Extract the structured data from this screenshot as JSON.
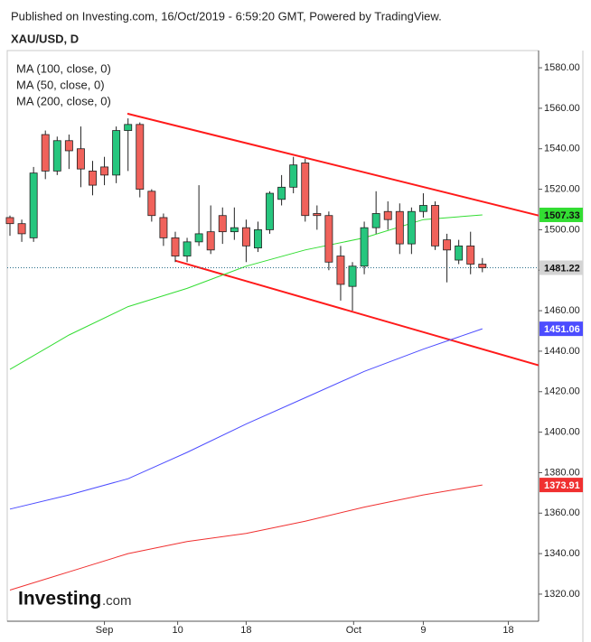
{
  "header": {
    "published": "Published on Investing.com, 16/Oct/2019 - 6:59:20 GMT, Powered by TradingView.",
    "logo": "Investing",
    "logo_suffix": ".com"
  },
  "chart_data": {
    "type": "candlestick",
    "title": "XAU/USD, D",
    "x": [
      0,
      1,
      2,
      3,
      4,
      5,
      6,
      7,
      8,
      9,
      10,
      11,
      12,
      13,
      14,
      15,
      16,
      17,
      18,
      19,
      20,
      21,
      22,
      23,
      24,
      25,
      26,
      27,
      28,
      29,
      30,
      31,
      32,
      33,
      34,
      35,
      36,
      37,
      38,
      39,
      40
    ],
    "open": [
      1506,
      1503,
      1496,
      1547,
      1529,
      1544,
      1540,
      1529,
      1531,
      1527,
      1549,
      1552,
      1519,
      1506,
      1496,
      1487,
      1494,
      1499,
      1507,
      1499,
      1501,
      1491,
      1500,
      1515,
      1521,
      1533,
      1508,
      1507,
      1487,
      1472,
      1482,
      1501,
      1509,
      1509,
      1493,
      1509,
      1512,
      1495,
      1485,
      1492,
      1483
    ],
    "high": [
      1507,
      1505,
      1531,
      1549,
      1546,
      1547,
      1551,
      1534,
      1536,
      1551,
      1555,
      1553,
      1520,
      1508,
      1499,
      1496,
      1522,
      1512,
      1511,
      1511,
      1505,
      1504,
      1519,
      1527,
      1536,
      1535,
      1512,
      1509,
      1492,
      1484,
      1504,
      1519,
      1514,
      1513,
      1511,
      1518,
      1514,
      1498,
      1495,
      1499,
      1486
    ],
    "low": [
      1497,
      1494,
      1494,
      1525,
      1527,
      1530,
      1521,
      1517,
      1522,
      1523,
      1529,
      1516,
      1504,
      1492,
      1484,
      1484,
      1492,
      1488,
      1493,
      1495,
      1484,
      1489,
      1498,
      1512,
      1518,
      1504,
      1500,
      1480,
      1465,
      1460,
      1478,
      1498,
      1500,
      1488,
      1488,
      1506,
      1490,
      1474,
      1483,
      1478,
      1479
    ],
    "close": [
      1503,
      1498,
      1528,
      1529,
      1544,
      1539,
      1530,
      1522,
      1527,
      1549,
      1552,
      1520,
      1507,
      1496,
      1487,
      1494,
      1498,
      1490,
      1499,
      1501,
      1492,
      1500,
      1518,
      1521,
      1532,
      1507,
      1507,
      1484,
      1473,
      1482,
      1501,
      1508,
      1505,
      1493,
      1509,
      1512,
      1492,
      1490,
      1492,
      1483,
      1481.22
    ],
    "up_color": "#26c67e",
    "down_color": "#f0625b",
    "last_price_color": "#d4d4d4",
    "overlays": [
      {
        "name": "MA (100, close, 0)",
        "color": "#4c4cff",
        "x": [
          0,
          5,
          10,
          15,
          20,
          25,
          30,
          35,
          40
        ],
        "values": [
          1362,
          1369,
          1377,
          1390,
          1404,
          1417,
          1430,
          1441,
          1451.06
        ]
      },
      {
        "name": "MA (50, close, 0)",
        "color": "#33dd33",
        "x": [
          0,
          5,
          10,
          15,
          20,
          25,
          30,
          35,
          40
        ],
        "values": [
          1431,
          1448,
          1462,
          1471,
          1482,
          1490,
          1496,
          1505,
          1507.33
        ]
      },
      {
        "name": "MA (200, close, 0)",
        "color": "#f03030",
        "x": [
          0,
          5,
          10,
          15,
          20,
          25,
          30,
          35,
          40
        ],
        "values": [
          1322,
          1331,
          1340,
          1346,
          1350,
          1356,
          1363,
          1369,
          1373.91
        ]
      }
    ],
    "trendlines": [
      {
        "color": "#ff1a1a",
        "x": [
          9.95,
          44.76
        ],
        "y": [
          1557.3,
          1507
        ]
      },
      {
        "color": "#ff1a1a",
        "x": [
          14.0,
          44.76
        ],
        "y": [
          1484.7,
          1433
        ]
      }
    ],
    "xlim": [
      -0.23,
      44.76
    ],
    "xticks": [
      {
        "value": 8,
        "label": "Sep"
      },
      {
        "value": 14.2,
        "label": "10"
      },
      {
        "value": 20,
        "label": "18"
      },
      {
        "value": 29.1,
        "label": "Oct"
      },
      {
        "value": 35,
        "label": "9"
      },
      {
        "value": 42.2,
        "label": "18"
      }
    ],
    "ylim": [
      1306.6,
      1588.5
    ],
    "yticks": [
      {
        "value": 1320,
        "label": "1320.00"
      },
      {
        "value": 1340,
        "label": "1340.00"
      },
      {
        "value": 1360,
        "label": "1360.00"
      },
      {
        "value": 1380,
        "label": "1380.00"
      },
      {
        "value": 1400,
        "label": "1400.00"
      },
      {
        "value": 1420,
        "label": "1420.00"
      },
      {
        "value": 1440,
        "label": "1440.00"
      },
      {
        "value": 1460,
        "label": "1460.00"
      },
      {
        "value": 1480,
        "label": "1480.00"
      },
      {
        "value": 1500,
        "label": "1500.00"
      },
      {
        "value": 1520,
        "label": "1520.00"
      },
      {
        "value": 1540,
        "label": "1540.00"
      },
      {
        "value": 1560,
        "label": "1560.00"
      },
      {
        "value": 1580,
        "label": "1580.00"
      }
    ]
  }
}
